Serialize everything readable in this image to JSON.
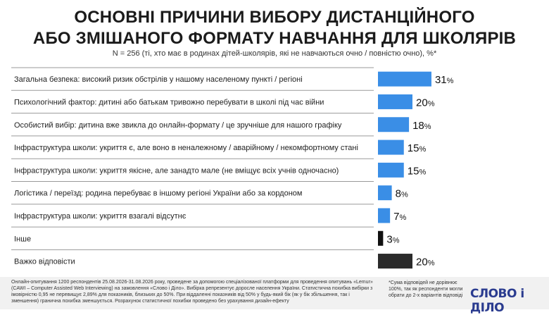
{
  "header": {
    "title_line1": "ОСНОВНІ ПРИЧИНИ ВИБОРУ ДИСТАНЦІЙНОГО",
    "title_line2": "АБО ЗМІШАНОГО ФОРМАТУ НАВЧАННЯ ДЛЯ ШКОЛЯРІВ",
    "subtitle": "N = 256 (ті, хто має в родинах дітей-школярів, які не навчаються очно / повністю очно), %*"
  },
  "chart_data": {
    "type": "bar",
    "orientation": "horizontal",
    "categories": [
      "Загальна безпека: високий ризик обстрілів у нашому населеному пункті / регіоні",
      "Психологічний фактор: дитині або батькам тривожно перебувати в школі під час війни",
      "Особистий вибір: дитина вже звикла до онлайн-формату / це зручніше для нашого графіку",
      "Інфраструктура школи: укриття є, але воно в неналежному / аварійному / некомфортному стані",
      "Інфраструктура школи: укриття якісне, але занадто мале (не вміщує всіх учнів одночасно)",
      "Логістика / переїзд: родина перебуває в іншому регіоні України або за кордоном",
      "Інфраструктура школи: укриття взагалі відсутнє",
      "Інше",
      "Важко відповісти"
    ],
    "values": [
      31,
      20,
      18,
      15,
      15,
      8,
      7,
      3,
      20
    ],
    "unit": "%",
    "colors": [
      "#3a8ee6",
      "#3a8ee6",
      "#3a8ee6",
      "#3a8ee6",
      "#3a8ee6",
      "#3a8ee6",
      "#3a8ee6",
      "#111111",
      "#2b2b2b"
    ],
    "xlim": [
      0,
      100
    ]
  },
  "footer": {
    "main": "Онлайн-опитування 1200 респондентів 25.08.2026-31.08.2026 року, проведене за допомогою спеціалізованої платформи для проведення опитувань «Lemur» (CAWI – Computer Assisted Web Interviewing) на замовлення «Слово і Діло». Вибірка репрезентує доросле населення України. Статистична похибка вибірки з імовірністю 0,95 не перевищує 2,89% для показників, близьких до 50%. При віддаленні показників від 50% у будь-який бік (як у бік збільшення, так і зменшення) гранична похибка зменшується. Розрахунок статистичної похибки проведено без урахування дизайн-ефекту",
    "note": "*Сума відповідей не дорівнює 100%, так як респонденти могли обрати до 2-х варіантів відповіді",
    "logo": "СЛОВО і ДІЛО"
  }
}
